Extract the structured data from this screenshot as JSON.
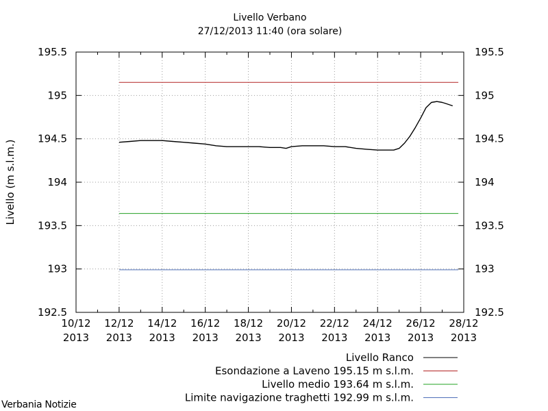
{
  "chart_data": {
    "type": "line",
    "title": "Livello Verbano",
    "subtitle": "27/12/2013 11:40 (ora solare)",
    "ylabel": "Livello (m s.l.m.)",
    "xlabel": "",
    "ylim": [
      192.5,
      195.5
    ],
    "yticks": [
      "195.5",
      "195",
      "194.5",
      "194",
      "193.5",
      "193",
      "192.5"
    ],
    "xlim": [
      "2013-12-10",
      "2013-12-28"
    ],
    "xticks": [
      {
        "date": "2013-12-10",
        "line1": "10/12",
        "line2": "2013"
      },
      {
        "date": "2013-12-12",
        "line1": "12/12",
        "line2": "2013"
      },
      {
        "date": "2013-12-14",
        "line1": "14/12",
        "line2": "2013"
      },
      {
        "date": "2013-12-16",
        "line1": "16/12",
        "line2": "2013"
      },
      {
        "date": "2013-12-18",
        "line1": "18/12",
        "line2": "2013"
      },
      {
        "date": "2013-12-20",
        "line1": "20/12",
        "line2": "2013"
      },
      {
        "date": "2013-12-22",
        "line1": "22/12",
        "line2": "2013"
      },
      {
        "date": "2013-12-24",
        "line1": "24/12",
        "line2": "2013"
      },
      {
        "date": "2013-12-26",
        "line1": "26/12",
        "line2": "2013"
      },
      {
        "date": "2013-12-28",
        "line1": "28/12",
        "line2": "2013"
      }
    ],
    "grid": true,
    "legend_position": "bottom-right",
    "series": [
      {
        "name": "Livello Ranco",
        "color": "#000000",
        "x": [
          "2013-12-12T00:00",
          "2013-12-12T12:00",
          "2013-12-13T00:00",
          "2013-12-13T12:00",
          "2013-12-14T00:00",
          "2013-12-14T12:00",
          "2013-12-15T00:00",
          "2013-12-15T12:00",
          "2013-12-16T00:00",
          "2013-12-16T12:00",
          "2013-12-17T00:00",
          "2013-12-17T12:00",
          "2013-12-18T00:00",
          "2013-12-18T12:00",
          "2013-12-19T00:00",
          "2013-12-19T12:00",
          "2013-12-19T18:00",
          "2013-12-20T00:00",
          "2013-12-20T12:00",
          "2013-12-21T00:00",
          "2013-12-21T12:00",
          "2013-12-22T00:00",
          "2013-12-22T12:00",
          "2013-12-23T00:00",
          "2013-12-23T12:00",
          "2013-12-24T00:00",
          "2013-12-24T12:00",
          "2013-12-24T18:00",
          "2013-12-25T00:00",
          "2013-12-25T06:00",
          "2013-12-25T12:00",
          "2013-12-25T18:00",
          "2013-12-26T00:00",
          "2013-12-26T06:00",
          "2013-12-26T12:00",
          "2013-12-26T18:00",
          "2013-12-27T00:00",
          "2013-12-27T06:00",
          "2013-12-27T11:40"
        ],
        "y": [
          194.46,
          194.47,
          194.48,
          194.48,
          194.48,
          194.47,
          194.46,
          194.45,
          194.44,
          194.42,
          194.41,
          194.41,
          194.41,
          194.41,
          194.4,
          194.4,
          194.39,
          194.41,
          194.42,
          194.42,
          194.42,
          194.41,
          194.41,
          194.39,
          194.38,
          194.37,
          194.37,
          194.37,
          194.39,
          194.45,
          194.53,
          194.63,
          194.74,
          194.86,
          194.92,
          194.93,
          194.92,
          194.9,
          194.88
        ]
      },
      {
        "name": "Esondazione a Laveno 195.15 m s.l.m.",
        "color": "#b22222",
        "x": [
          "2013-12-12T00:00",
          "2013-12-27T18:00"
        ],
        "y": [
          195.15,
          195.15
        ]
      },
      {
        "name": "Livello medio 193.64 m s.l.m.",
        "color": "#22a022",
        "x": [
          "2013-12-12T00:00",
          "2013-12-27T18:00"
        ],
        "y": [
          193.64,
          193.64
        ]
      },
      {
        "name": "Limite navigazione traghetti 192.99 m s.l.m.",
        "color": "#4f6fb8",
        "x": [
          "2013-12-12T00:00",
          "2013-12-27T18:00"
        ],
        "y": [
          192.99,
          192.99
        ]
      }
    ]
  },
  "watermark": "Verbania Notizie"
}
